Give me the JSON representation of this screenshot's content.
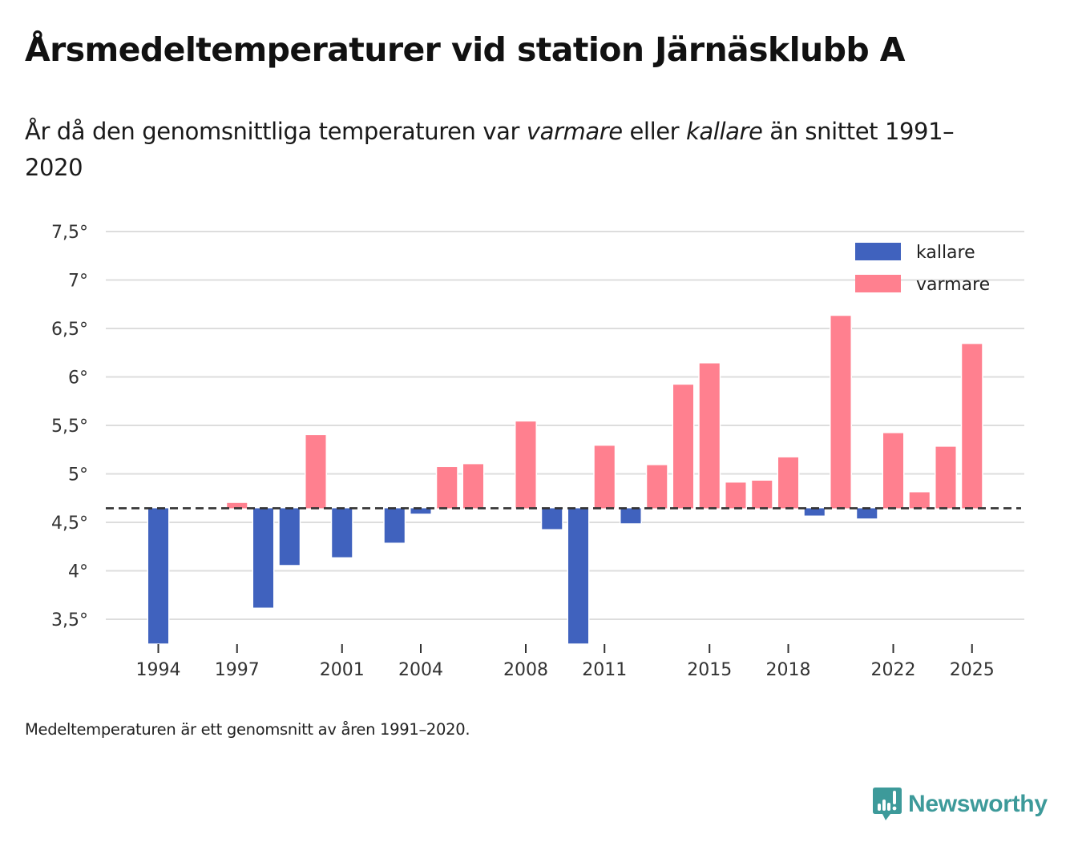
{
  "header": {
    "title": "Årsmedeltemperaturer vid station Järnäsklubb A",
    "subtitle_parts": [
      "År då den genomsnittliga temperaturen var ",
      "varmare",
      " eller ",
      "kallare",
      " än snittet 1991–2020"
    ]
  },
  "footer": {
    "note": "Medeltemperaturen är ett genomsnitt av åren 1991–2020.",
    "brand": "Newsworthy",
    "brand_color": "#3d9a9a"
  },
  "colors": {
    "kallare": "#4062be",
    "varmare": "#ff808f",
    "baseline": "#333333",
    "grid": "#dddddd"
  },
  "chart_data": {
    "type": "bar",
    "title": "Årsmedeltemperaturer vid station Järnäsklubb A",
    "subtitle": "År då den genomsnittliga temperaturen var varmare eller kallare än snittet 1991–2020",
    "xlabel": "",
    "ylabel": "",
    "baseline": 4.645,
    "baseline_style": "dashed",
    "ylim": [
      3.25,
      7.6
    ],
    "yticks": [
      3.5,
      4,
      4.5,
      5,
      5.5,
      6,
      6.5,
      7,
      7.5
    ],
    "ytick_labels": [
      "3,5°",
      "4°",
      "4,5°",
      "5°",
      "5,5°",
      "6°",
      "6,5°",
      "7°",
      "7,5°"
    ],
    "xlim": [
      1994,
      2025
    ],
    "xticks": [
      1994,
      1997,
      2001,
      2004,
      2008,
      2011,
      2015,
      2018,
      2022,
      2025
    ],
    "xtick_labels": [
      "1994",
      "1997",
      "2001",
      "2004",
      "2008",
      "2011",
      "2015",
      "2018",
      "2022",
      "2025"
    ],
    "grid": true,
    "legend": {
      "position": "top-right",
      "entries": [
        {
          "key": "kallare",
          "label": "kallare"
        },
        {
          "key": "varmare",
          "label": "varmare"
        }
      ]
    },
    "points": [
      {
        "year": 1994,
        "value": 3.25,
        "category": "kallare"
      },
      {
        "year": 1997,
        "value": 4.7,
        "category": "varmare"
      },
      {
        "year": 1998,
        "value": 3.62,
        "category": "kallare"
      },
      {
        "year": 1999,
        "value": 4.06,
        "category": "kallare"
      },
      {
        "year": 2000,
        "value": 5.4,
        "category": "varmare"
      },
      {
        "year": 2001,
        "value": 4.14,
        "category": "kallare"
      },
      {
        "year": 2003,
        "value": 4.29,
        "category": "kallare"
      },
      {
        "year": 2004,
        "value": 4.59,
        "category": "kallare"
      },
      {
        "year": 2005,
        "value": 5.07,
        "category": "varmare"
      },
      {
        "year": 2006,
        "value": 5.1,
        "category": "varmare"
      },
      {
        "year": 2008,
        "value": 5.54,
        "category": "varmare"
      },
      {
        "year": 2009,
        "value": 4.43,
        "category": "kallare"
      },
      {
        "year": 2010,
        "value": 3.25,
        "category": "kallare"
      },
      {
        "year": 2011,
        "value": 5.29,
        "category": "varmare"
      },
      {
        "year": 2012,
        "value": 4.49,
        "category": "kallare"
      },
      {
        "year": 2013,
        "value": 5.09,
        "category": "varmare"
      },
      {
        "year": 2014,
        "value": 5.92,
        "category": "varmare"
      },
      {
        "year": 2015,
        "value": 6.14,
        "category": "varmare"
      },
      {
        "year": 2016,
        "value": 4.91,
        "category": "varmare"
      },
      {
        "year": 2017,
        "value": 4.93,
        "category": "varmare"
      },
      {
        "year": 2018,
        "value": 5.17,
        "category": "varmare"
      },
      {
        "year": 2019,
        "value": 4.57,
        "category": "kallare"
      },
      {
        "year": 2020,
        "value": 6.63,
        "category": "varmare"
      },
      {
        "year": 2021,
        "value": 4.54,
        "category": "kallare"
      },
      {
        "year": 2022,
        "value": 5.42,
        "category": "varmare"
      },
      {
        "year": 2023,
        "value": 4.81,
        "category": "varmare"
      },
      {
        "year": 2024,
        "value": 5.28,
        "category": "varmare"
      },
      {
        "year": 2025,
        "value": 6.34,
        "category": "varmare"
      }
    ]
  }
}
